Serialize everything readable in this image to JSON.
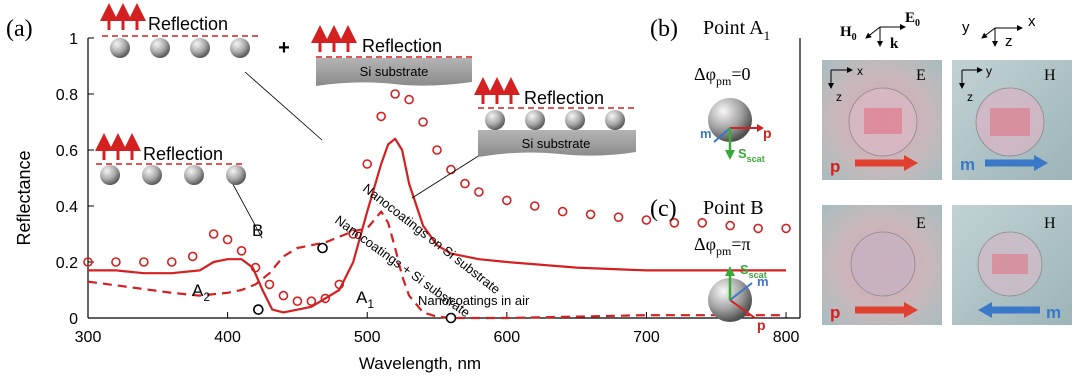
{
  "colors": {
    "red": "#d42020",
    "dark": "#000000",
    "blue": "#3a78c8",
    "green": "#3aa83a",
    "gray": "#7a7a7a",
    "substrate": "#9a9a9a",
    "map_bg": "#b8c9c9"
  },
  "panel_a": {
    "label": "(a)",
    "xlabel": "Wavelength, nm",
    "ylabel": "Reflectance",
    "x_ticks": [
      "300",
      "400",
      "500",
      "600",
      "700",
      "800"
    ],
    "y_ticks": [
      "0",
      "0.2",
      "0.4",
      "0.6",
      "0.8",
      "1"
    ],
    "plus": "+",
    "insets": {
      "reflection": "Reflection",
      "substrate": "Si substrate"
    },
    "annotations": {
      "on_si": "Nanocoatings on Si substrate",
      "plus_si": "Nanocoatings + Si substrate",
      "in_air": "Nanocoatings in air",
      "point_b": "B",
      "point_a1_main": "A",
      "point_a1_sub": "1",
      "point_a2_main": "A",
      "point_a2_sub": "2"
    }
  },
  "panel_b": {
    "label": "(b)",
    "title_main": "Point A",
    "title_sub": "1",
    "phase_main": "Δφ",
    "phase_sub": "pm",
    "phase_val": "=0",
    "m": "m",
    "p": "p",
    "s_main": "S",
    "s_sub": "scat",
    "axes1": {
      "h": "H",
      "h_sub": "0",
      "e": "E",
      "e_sub": "0",
      "k": "k"
    },
    "axes2": {
      "y": "y",
      "x": "x",
      "z": "z"
    },
    "map_e": {
      "label": "E",
      "x": "x",
      "z": "z"
    },
    "map_h": {
      "label": "H",
      "y": "y",
      "z": "z"
    }
  },
  "panel_c": {
    "label": "(c)",
    "title": "Point B",
    "phase_main": "Δφ",
    "phase_sub": "pm",
    "phase_val": "=π",
    "m": "m",
    "p": "p",
    "s_main": "S",
    "s_sub": "scat",
    "map_e": {
      "label": "E"
    },
    "map_h": {
      "label": "H"
    }
  },
  "chart_data": {
    "type": "line",
    "xlabel": "Wavelength, nm",
    "ylabel": "Reflectance",
    "xlim": [
      300,
      810
    ],
    "ylim": [
      0,
      1
    ],
    "series": [
      {
        "name": "Nanocoatings on Si substrate",
        "style": "circles",
        "x": [
          300,
          320,
          340,
          360,
          375,
          390,
          400,
          410,
          420,
          430,
          440,
          450,
          460,
          470,
          480,
          490,
          500,
          510,
          520,
          530,
          540,
          550,
          560,
          570,
          580,
          600,
          620,
          640,
          660,
          680,
          700,
          720,
          740,
          760,
          780,
          800
        ],
        "y": [
          0.2,
          0.2,
          0.2,
          0.2,
          0.22,
          0.3,
          0.28,
          0.24,
          0.18,
          0.12,
          0.08,
          0.06,
          0.06,
          0.07,
          0.12,
          0.3,
          0.55,
          0.72,
          0.8,
          0.78,
          0.7,
          0.6,
          0.53,
          0.48,
          0.45,
          0.42,
          0.4,
          0.38,
          0.37,
          0.36,
          0.35,
          0.34,
          0.34,
          0.33,
          0.32,
          0.32
        ]
      },
      {
        "name": "Nanocoatings + Si substrate",
        "style": "solid",
        "x": [
          300,
          320,
          340,
          360,
          380,
          390,
          400,
          410,
          418,
          425,
          432,
          440,
          460,
          480,
          490,
          500,
          510,
          515,
          520,
          525,
          530,
          540,
          550,
          560,
          580,
          600,
          650,
          700,
          750,
          800
        ],
        "y": [
          0.17,
          0.17,
          0.16,
          0.16,
          0.17,
          0.2,
          0.21,
          0.21,
          0.18,
          0.1,
          0.03,
          0.02,
          0.04,
          0.1,
          0.2,
          0.38,
          0.55,
          0.62,
          0.64,
          0.6,
          0.48,
          0.33,
          0.26,
          0.23,
          0.21,
          0.2,
          0.18,
          0.17,
          0.17,
          0.17
        ]
      },
      {
        "name": "Nanocoatings in air",
        "style": "dashed",
        "x": [
          300,
          330,
          360,
          380,
          400,
          410,
          420,
          430,
          440,
          450,
          460,
          470,
          480,
          490,
          500,
          505,
          510,
          515,
          520,
          525,
          530,
          540,
          550,
          560,
          600,
          700,
          800
        ],
        "y": [
          0.13,
          0.11,
          0.09,
          0.08,
          0.09,
          0.1,
          0.12,
          0.16,
          0.22,
          0.25,
          0.26,
          0.27,
          0.29,
          0.31,
          0.32,
          0.35,
          0.38,
          0.34,
          0.25,
          0.15,
          0.08,
          0.02,
          0.005,
          0.0,
          0.0,
          0.01,
          0.01
        ]
      }
    ],
    "points": [
      {
        "label": "A1",
        "x": 560,
        "y": 0.0
      },
      {
        "label": "A2",
        "x": 422,
        "y": 0.03
      },
      {
        "label": "B",
        "x": 468,
        "y": 0.25
      }
    ]
  }
}
